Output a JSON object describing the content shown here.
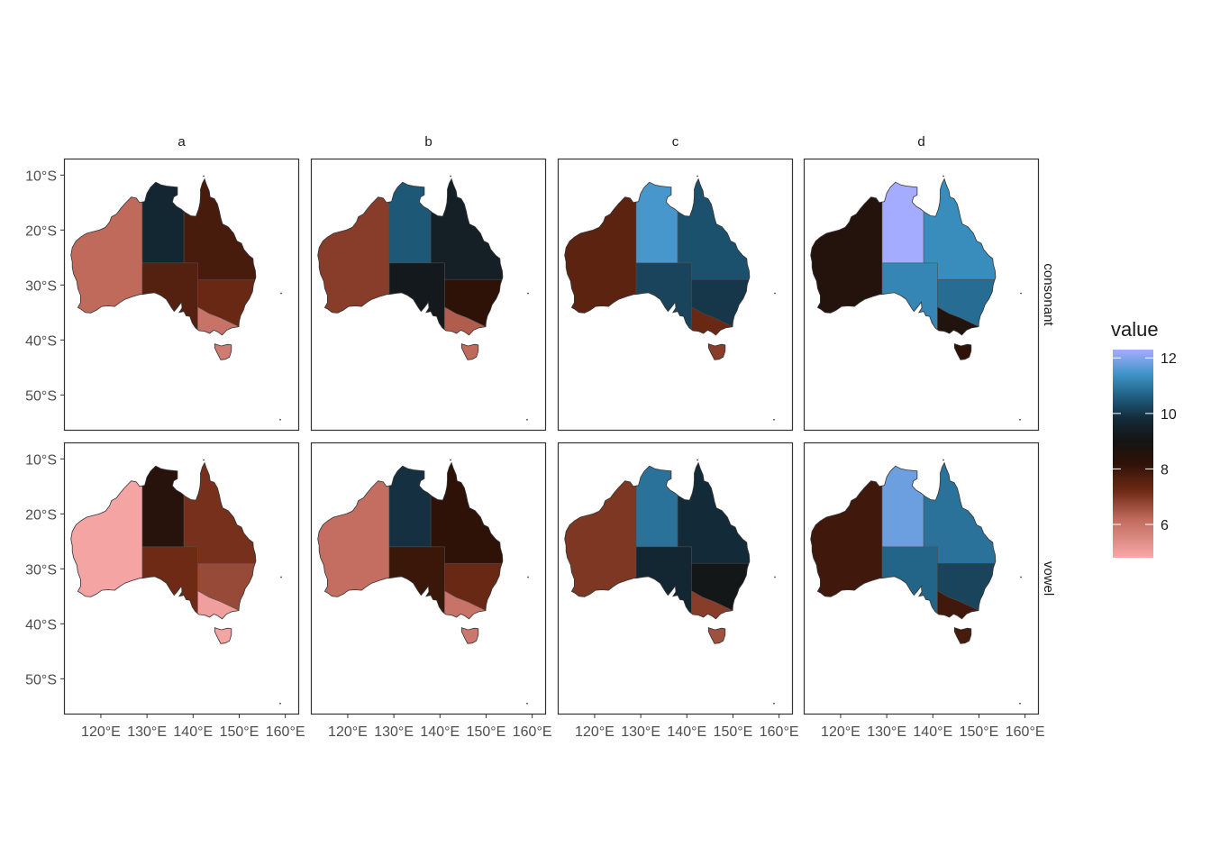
{
  "chart_data": {
    "type": "choropleth-facet",
    "columns": [
      "a",
      "b",
      "c",
      "d"
    ],
    "rows": [
      "consonant",
      "vowel"
    ],
    "x_ticks": [
      {
        "value": 120,
        "label": "120°E"
      },
      {
        "value": 130,
        "label": "130°E"
      },
      {
        "value": 140,
        "label": "140°E"
      },
      {
        "value": 150,
        "label": "150°E"
      },
      {
        "value": 160,
        "label": "160°E"
      }
    ],
    "y_ticks": [
      {
        "value": -10,
        "label": "10°S"
      },
      {
        "value": -20,
        "label": "20°S"
      },
      {
        "value": -30,
        "label": "30°S"
      },
      {
        "value": -40,
        "label": "40°S"
      },
      {
        "value": -50,
        "label": "50°S"
      }
    ],
    "xlim": [
      112,
      163
    ],
    "ylim": [
      -56.5,
      -7
    ],
    "regions": [
      "Western Australia",
      "Northern Territory",
      "Queensland",
      "South Australia",
      "New South Wales",
      "Victoria",
      "Tasmania"
    ],
    "values": {
      "consonant": {
        "a": {
          "Western Australia": 6.2,
          "Northern Territory": 9.7,
          "Queensland": 7.8,
          "South Australia": 7.6,
          "New South Wales": 7.3,
          "Victoria": 6.0,
          "Tasmania": 5.8
        },
        "b": {
          "Western Australia": 6.9,
          "Northern Territory": 10.5,
          "Queensland": 9.4,
          "South Australia": 9.2,
          "New South Wales": 8.2,
          "Victoria": 6.4,
          "Tasmania": 6.2
        },
        "c": {
          "Western Australia": 7.5,
          "Northern Territory": 11.5,
          "Queensland": 10.4,
          "South Australia": 10.2,
          "New South Wales": 10.0,
          "Victoria": 7.3,
          "Tasmania": 6.9
        },
        "d": {
          "Western Australia": 8.5,
          "Northern Territory": 12.3,
          "Queensland": 11.3,
          "South Australia": 11.2,
          "New South Wales": 10.8,
          "Victoria": 8.6,
          "Tasmania": 8.2
        }
      },
      "vowel": {
        "a": {
          "Western Australia": 4.9,
          "Northern Territory": 8.4,
          "Queensland": 7.1,
          "South Australia": 7.2,
          "New South Wales": 6.7,
          "Victoria": 5.0,
          "Tasmania": 4.9
        },
        "b": {
          "Western Australia": 6.1,
          "Northern Territory": 9.9,
          "Queensland": 8.2,
          "South Australia": 8.0,
          "New South Wales": 7.3,
          "Victoria": 6.0,
          "Tasmania": 5.9
        },
        "c": {
          "Western Australia": 7.0,
          "Northern Territory": 10.9,
          "Queensland": 9.8,
          "South Australia": 9.7,
          "New South Wales": 9.1,
          "Victoria": 6.9,
          "Tasmania": 6.6
        },
        "d": {
          "Western Australia": 7.9,
          "Northern Territory": 11.8,
          "Queensland": 10.9,
          "South Australia": 10.7,
          "New South Wales": 10.2,
          "Victoria": 7.9,
          "Tasmania": 7.8
        }
      }
    },
    "legend": {
      "title": "value",
      "placement": "right",
      "range": [
        4.8,
        12.3
      ],
      "ticks": [
        6,
        8,
        10,
        12
      ],
      "tick_labels": [
        "6",
        "8",
        "10",
        "12"
      ],
      "color_stops": [
        {
          "value": 4.8,
          "color": "#f7a8a8"
        },
        {
          "value": 6.2,
          "color": "#c06a5c"
        },
        {
          "value": 7.2,
          "color": "#6e2a14"
        },
        {
          "value": 8.2,
          "color": "#2e1208"
        },
        {
          "value": 9.0,
          "color": "#141414"
        },
        {
          "value": 9.8,
          "color": "#132a38"
        },
        {
          "value": 10.6,
          "color": "#1f5e80"
        },
        {
          "value": 11.4,
          "color": "#3d94c6"
        },
        {
          "value": 12.3,
          "color": "#a4acff"
        }
      ]
    },
    "grid": false
  }
}
